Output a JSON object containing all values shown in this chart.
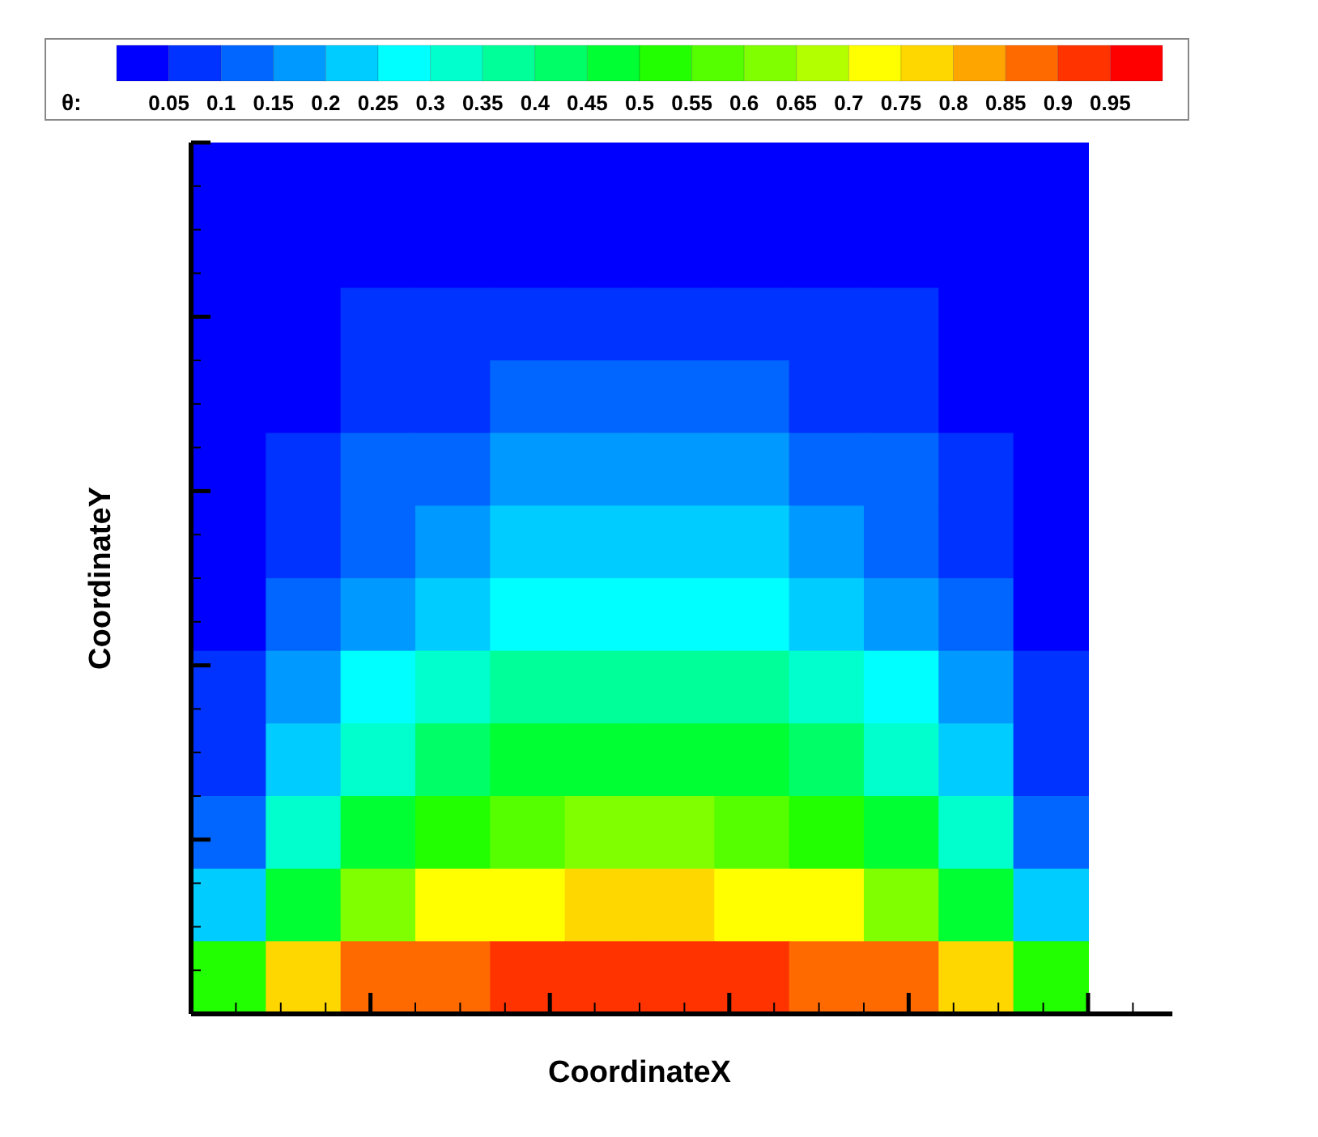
{
  "chart_data": {
    "type": "heatmap",
    "xlabel": "CoordinateX",
    "ylabel": "CoordinateY",
    "clabel": "θ:",
    "clim": [
      0,
      1
    ],
    "cticks": [
      0.05,
      0.1,
      0.15,
      0.2,
      0.25,
      0.3,
      0.35,
      0.4,
      0.45,
      0.5,
      0.55,
      0.6,
      0.65,
      0.7,
      0.75,
      0.8,
      0.85,
      0.9,
      0.95
    ],
    "colors": [
      "#0000ff",
      "#0033ff",
      "#0066ff",
      "#0099ff",
      "#00ccff",
      "#00ffff",
      "#00ffcc",
      "#00ff99",
      "#00ff66",
      "#00ff33",
      "#22ff00",
      "#55ff00",
      "#80ff00",
      "#b3ff00",
      "#ffff00",
      "#ffd700",
      "#ffa500",
      "#ff6a00",
      "#ff3300",
      "#ff0000"
    ],
    "categories": [
      null,
      null,
      null,
      null,
      null,
      null,
      null,
      null,
      null,
      null,
      null,
      null
    ],
    "y_categories": [
      null,
      null,
      null,
      null,
      null,
      null,
      null,
      null,
      null,
      null,
      null,
      null
    ],
    "cells": [
      [
        0.0,
        0.01,
        0.01,
        0.01,
        0.01,
        0.01,
        0.01,
        0.01,
        0.01,
        0.01,
        0.01,
        0.0
      ],
      [
        0.01,
        0.02,
        0.03,
        0.04,
        0.04,
        0.04,
        0.04,
        0.04,
        0.04,
        0.03,
        0.02,
        0.01
      ],
      [
        0.01,
        0.03,
        0.05,
        0.06,
        0.07,
        0.08,
        0.08,
        0.07,
        0.06,
        0.05,
        0.03,
        0.01
      ],
      [
        0.02,
        0.04,
        0.07,
        0.09,
        0.11,
        0.11,
        0.11,
        0.11,
        0.09,
        0.07,
        0.04,
        0.02
      ],
      [
        0.02,
        0.06,
        0.1,
        0.13,
        0.15,
        0.16,
        0.16,
        0.15,
        0.13,
        0.1,
        0.06,
        0.02
      ],
      [
        0.03,
        0.09,
        0.14,
        0.18,
        0.2,
        0.22,
        0.22,
        0.2,
        0.18,
        0.14,
        0.09,
        0.03
      ],
      [
        0.04,
        0.12,
        0.18,
        0.23,
        0.27,
        0.28,
        0.28,
        0.27,
        0.23,
        0.18,
        0.12,
        0.04
      ],
      [
        0.05,
        0.16,
        0.25,
        0.31,
        0.35,
        0.37,
        0.37,
        0.35,
        0.31,
        0.25,
        0.16,
        0.05
      ],
      [
        0.08,
        0.22,
        0.33,
        0.41,
        0.45,
        0.48,
        0.48,
        0.45,
        0.41,
        0.33,
        0.22,
        0.08
      ],
      [
        0.11,
        0.32,
        0.45,
        0.54,
        0.58,
        0.61,
        0.61,
        0.58,
        0.54,
        0.45,
        0.32,
        0.11
      ],
      [
        0.2,
        0.48,
        0.62,
        0.7,
        0.73,
        0.75,
        0.75,
        0.73,
        0.7,
        0.62,
        0.48,
        0.2
      ],
      [
        0.5,
        0.79,
        0.86,
        0.89,
        0.91,
        0.92,
        0.92,
        0.91,
        0.89,
        0.86,
        0.79,
        0.5
      ]
    ]
  }
}
